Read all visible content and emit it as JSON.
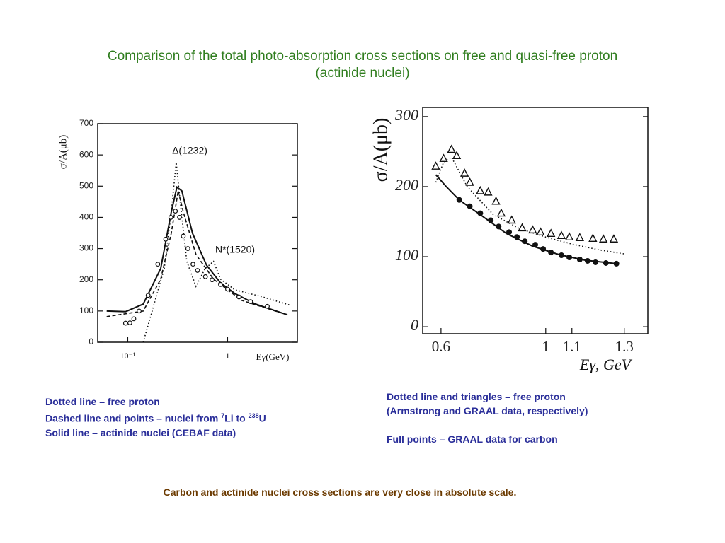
{
  "title": [
    "Comparison of the total photo-absorption cross sections on free and quasi-free proton",
    "(actinide nuclei)"
  ],
  "chart_data": [
    {
      "type": "line",
      "ylabel": "σ/A(μb)",
      "xlabel": "Eγ(GeV)",
      "log_x": true,
      "xlim": [
        0.05,
        5
      ],
      "ylim": [
        0,
        700
      ],
      "xticks": [
        {
          "value": 0.1,
          "label": "10⁻¹"
        },
        1
      ],
      "yticks": [
        0,
        100,
        200,
        300,
        400,
        500,
        600,
        700
      ],
      "annotations": [
        "Δ(1232)",
        "N*(1520)"
      ],
      "series": [
        {
          "style": "solid",
          "color": "#111111",
          "x": [
            0.0615,
            0.0953,
            0.143,
            0.214,
            0.273,
            0.311,
            0.348,
            0.445,
            0.615,
            0.85,
            1.18,
            1.91,
            3.97
          ],
          "values": [
            100,
            98,
            122,
            236,
            417,
            497,
            485,
            349,
            247,
            190,
            156,
            122,
            88
          ]
        },
        {
          "style": "dotted",
          "color": "#111111",
          "x": [
            0.143,
            0.232,
            0.273,
            0.306,
            0.332,
            0.39,
            0.482,
            0.595,
            0.723,
            0.85,
            1.18,
            2.25,
            4.3
          ],
          "values": [
            0,
            236,
            417,
            576,
            463,
            259,
            179,
            236,
            259,
            202,
            168,
            145,
            118
          ]
        },
        {
          "style": "dashed",
          "color": "#111111",
          "x": [
            0.0615,
            0.143,
            0.214,
            0.273,
            0.32,
            0.36,
            0.482,
            0.723,
            1.38,
            3.97
          ],
          "values": [
            82,
            100,
            202,
            349,
            485,
            417,
            281,
            202,
            134,
            88
          ]
        },
        {
          "style": "circles",
          "color": "#111111",
          "x": [
            0.095,
            0.105,
            0.115,
            0.13,
            0.16,
            0.2,
            0.24,
            0.27,
            0.3,
            0.33,
            0.36,
            0.4,
            0.45,
            0.5,
            0.6,
            0.7,
            0.85,
            1.0,
            1.3,
            1.7,
            2.5
          ],
          "values": [
            61,
            62,
            75,
            100,
            150,
            250,
            330,
            400,
            420,
            400,
            340,
            300,
            250,
            230,
            210,
            200,
            185,
            170,
            145,
            130,
            115
          ]
        }
      ]
    },
    {
      "type": "line",
      "ylabel": "σ/A(μb)",
      "xlabel": "Eγ, GeV",
      "log_x": false,
      "xlim": [
        0.53,
        1.39
      ],
      "ylim": [
        -10,
        313
      ],
      "xticks": [
        0.6,
        1.0,
        1.1,
        1.3
      ],
      "yticks": [
        0,
        100,
        200,
        300
      ],
      "series": [
        {
          "style": "solid",
          "color": "#111111",
          "x": [
            0.58,
            0.62,
            0.67,
            0.75,
            0.85,
            0.95,
            1.05,
            1.15,
            1.27
          ],
          "values": [
            217,
            200,
            181,
            160,
            133,
            115,
            103,
            95,
            90
          ]
        },
        {
          "style": "dotted",
          "color": "#111111",
          "x": [
            0.58,
            0.61,
            0.64,
            0.7,
            0.8,
            0.9,
            1.0,
            1.1,
            1.2,
            1.3
          ],
          "values": [
            206,
            235,
            242,
            200,
            160,
            140,
            128,
            118,
            110,
            104
          ]
        },
        {
          "style": "triangles",
          "color": "#111111",
          "x": [
            0.58,
            0.61,
            0.64,
            0.66,
            0.69,
            0.71,
            0.75,
            0.78,
            0.81,
            0.83,
            0.87,
            0.91,
            0.95,
            0.98,
            1.02,
            1.06,
            1.09,
            1.13,
            1.18,
            1.22,
            1.26
          ],
          "values": [
            229,
            240,
            253,
            244,
            219,
            206,
            194,
            192,
            179,
            162,
            152,
            141,
            138,
            135,
            133,
            130,
            128,
            127,
            126,
            125,
            125
          ]
        },
        {
          "style": "dots",
          "color": "#111111",
          "x": [
            0.67,
            0.71,
            0.75,
            0.79,
            0.82,
            0.86,
            0.89,
            0.92,
            0.96,
            0.99,
            1.02,
            1.06,
            1.09,
            1.13,
            1.16,
            1.19,
            1.23,
            1.27
          ],
          "values": [
            181,
            172,
            162,
            152,
            143,
            135,
            128,
            122,
            117,
            111,
            106,
            102,
            99,
            96,
            94,
            92,
            91,
            90
          ]
        }
      ]
    }
  ],
  "captions_left": [
    "Dotted line – free proton",
    [
      "Dashed line and points – nuclei from ",
      "7",
      "Li to ",
      "238",
      "U"
    ],
    "Solid line – actinide nuclei (CEBAF data)"
  ],
  "captions_right": [
    "Dotted line and triangles – free proton",
    "(Armstrong and GRAAL data, respectively)",
    "Full points – GRAAL data for carbon"
  ],
  "conclusion": "Carbon and actinide nuclei cross sections are very close in absolute scale."
}
